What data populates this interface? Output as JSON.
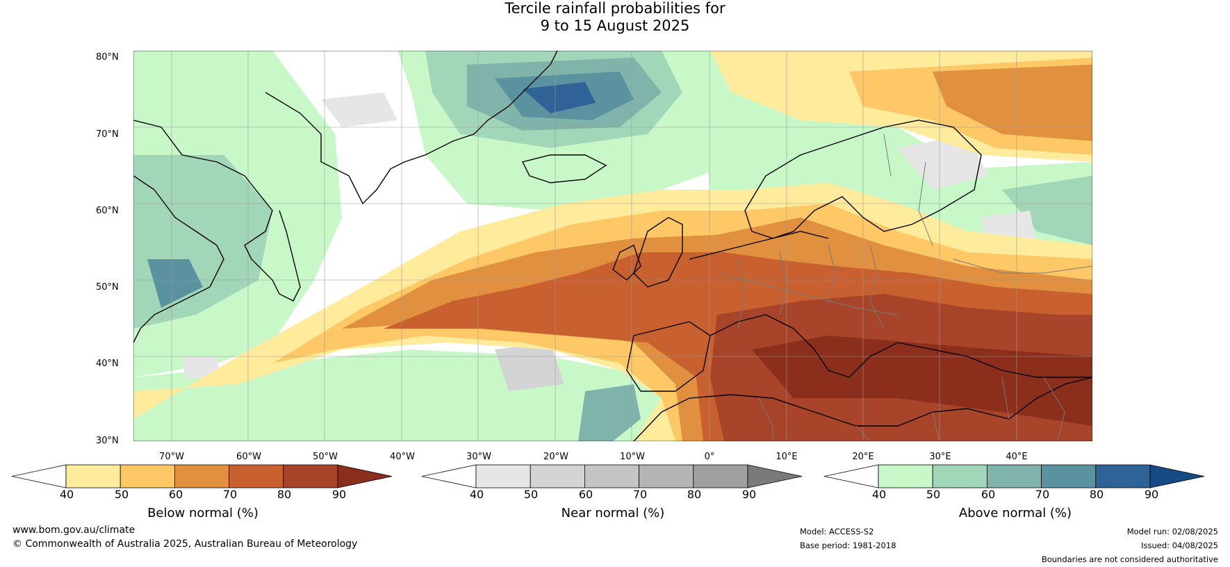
{
  "title": {
    "line1": "Tercile rainfall probabilities for",
    "line2": "9 to 15 August 2025"
  },
  "latitude_labels": [
    "80°N",
    "70°N",
    "60°N",
    "50°N",
    "40°N",
    "30°N"
  ],
  "longitude_labels": [
    "70°W",
    "60°W",
    "50°W",
    "40°W",
    "30°W",
    "20°W",
    "10°W",
    "0°",
    "10°E",
    "20°E",
    "30°E",
    "40°E"
  ],
  "colorbars": {
    "below": {
      "title": "Below normal (%)",
      "ticks": [
        "40",
        "50",
        "60",
        "70",
        "80",
        "90"
      ],
      "colors": [
        "#ffffff",
        "#ffeb9c",
        "#fdc865",
        "#e0903f",
        "#c8602f",
        "#a8442a",
        "#8c2e1c"
      ]
    },
    "near": {
      "title": "Near normal (%)",
      "ticks": [
        "40",
        "50",
        "60",
        "70",
        "80",
        "90"
      ],
      "colors": [
        "#ffffff",
        "#e6e6e6",
        "#d4d4d4",
        "#c4c4c4",
        "#b4b4b4",
        "#a0a0a0",
        "#7a7a7a"
      ]
    },
    "above": {
      "title": "Above normal (%)",
      "ticks": [
        "40",
        "50",
        "60",
        "70",
        "80",
        "90"
      ],
      "colors": [
        "#ffffff",
        "#c8f7c8",
        "#a2d6b8",
        "#80b4aa",
        "#5a92a0",
        "#2f6398",
        "#154a84"
      ]
    }
  },
  "footer": {
    "website": "www.bom.gov.au/climate",
    "copyright": "© Commonwealth of Australia 2025, Australian Bureau of Meteorology",
    "model": "Model: ACCESS-S2",
    "base_period": "Base period: 1981-2018",
    "model_run": "Model run: 02/08/2025",
    "issued": "Issued: 04/08/2025",
    "disclaimer": "Boundaries are not considered authoritative"
  }
}
